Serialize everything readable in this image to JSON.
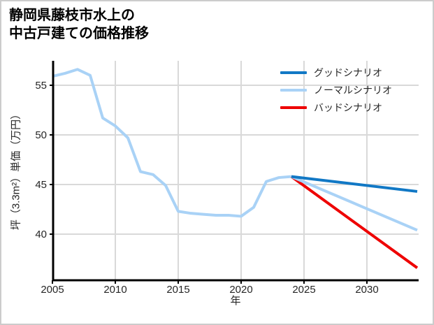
{
  "window": {
    "background": "#ffffff",
    "border_color": "#cccccc"
  },
  "title": {
    "line1": "静岡県藤枝市水上の",
    "line2": "中古戸建ての価格推移"
  },
  "chart_data": {
    "type": "line",
    "title": "静岡県藤枝市水上の中古戸建ての価格推移",
    "xlabel": "年",
    "ylabel": "坪（3.3m²）単価（万円）",
    "x_ticks": [
      2005,
      2010,
      2015,
      2020,
      2025,
      2030
    ],
    "y_ticks": [
      40,
      45,
      50,
      55
    ],
    "xlim": [
      2005,
      2034.2
    ],
    "ylim": [
      35.3,
      57.5
    ],
    "grid": true,
    "legend_position": "top-right",
    "colors": {
      "good": "#1178c5",
      "normal": "#a9d2f6",
      "bad": "#ee0000",
      "grid": "#d9d9d9",
      "axis": "#000000",
      "tick_text": "#262626"
    },
    "legend": [
      {
        "label": "グッドシナリオ",
        "color": "#1178c5"
      },
      {
        "label": "ノーマルシナリオ",
        "color": "#a9d2f6"
      },
      {
        "label": "バッドシナリオ",
        "color": "#ee0000"
      }
    ],
    "series": [
      {
        "id": "history",
        "color": "#a9d2f6",
        "x": [
          2005,
          2006,
          2007,
          2008,
          2009,
          2010,
          2011,
          2012,
          2013,
          2014,
          2015,
          2016,
          2017,
          2018,
          2019,
          2020,
          2021,
          2022,
          2023,
          2024
        ],
        "y": [
          55.9,
          56.2,
          56.6,
          56.0,
          51.7,
          50.9,
          49.7,
          46.3,
          46.0,
          44.9,
          42.3,
          42.1,
          42.0,
          41.9,
          41.9,
          41.8,
          42.7,
          45.3,
          45.7,
          45.8
        ]
      },
      {
        "id": "bad-scenario",
        "color": "#ee0000",
        "x": [
          2024,
          2034
        ],
        "y": [
          45.8,
          36.6
        ]
      },
      {
        "id": "normal-scenario",
        "color": "#a9d2f6",
        "x": [
          2024,
          2034
        ],
        "y": [
          45.8,
          40.4
        ]
      },
      {
        "id": "good-scenario",
        "color": "#1178c5",
        "x": [
          2024,
          2034
        ],
        "y": [
          45.8,
          44.3
        ]
      }
    ]
  }
}
